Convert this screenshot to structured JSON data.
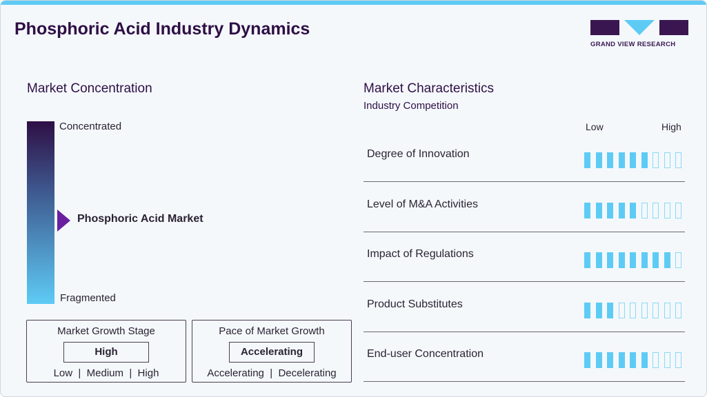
{
  "title": "Phosphoric Acid Industry Dynamics",
  "logo": {
    "text": "GRAND VIEW RESEARCH"
  },
  "concentration": {
    "heading": "Market Concentration",
    "top": "Concentrated",
    "bottom": "Fragmented",
    "marker": "Phosphoric Acid Market",
    "marker_color": "#6a1fa0"
  },
  "growth_stage": {
    "heading": "Market Growth Stage",
    "value": "High",
    "options": "Low  |  Medium  |  High"
  },
  "pace": {
    "heading": "Pace of Market Growth",
    "value": "Accelerating",
    "options": "Accelerating  |  Decelerating"
  },
  "characteristics": {
    "heading": "Market Characteristics",
    "subheading": "Industry Competition",
    "low": "Low",
    "high": "High",
    "max": 9,
    "accent": "#5ecbf5",
    "items": [
      {
        "label": "Degree of Innovation",
        "level": 6
      },
      {
        "label": "Level of M&A Activities",
        "level": 5
      },
      {
        "label": "Impact of Regulations",
        "level": 8
      },
      {
        "label": "Product Substitutes",
        "level": 3
      },
      {
        "label": "End-user Concentration",
        "level": 6
      }
    ]
  }
}
